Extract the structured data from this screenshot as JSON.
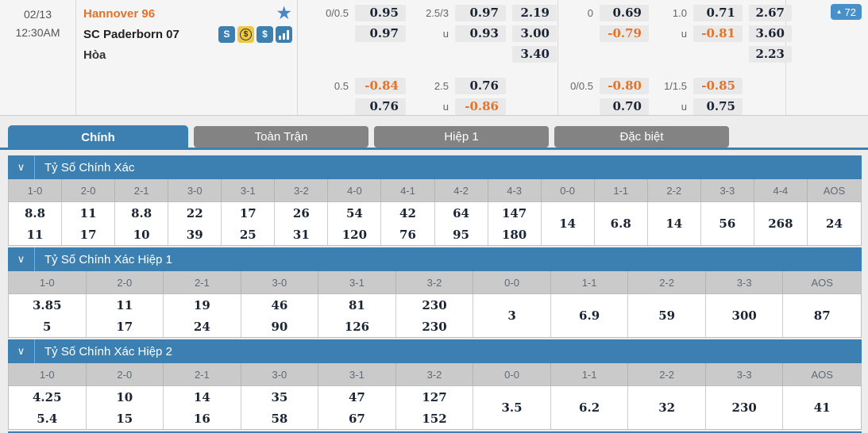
{
  "colors": {
    "accent_blue": "#3c7fb1",
    "button_blue": "#4a90c8",
    "tab_gray": "#838383",
    "odds_orange": "#e0742d",
    "odds_dark": "#1b2433",
    "chip_bg": "#e9e9e9"
  },
  "match": {
    "date": "02/13",
    "time": "12:30AM",
    "home_team": "Hannover 96",
    "away_team": "SC Paderborn 07",
    "draw_label": "Hòa",
    "favorite_icon": "star-icon",
    "team_icons": [
      "form-icon",
      "money-circle-icon",
      "dollar-icon",
      "bar-chart-icon"
    ],
    "more_arrow": "▲",
    "more_count": "72",
    "under_label": "u",
    "markets": {
      "ft": {
        "hdp_line": "0/0.5",
        "hdp_home": "0.95",
        "hdp_away": "0.97",
        "ou_line": "2.5/3",
        "ou_over": "0.97",
        "ou_under": "0.93",
        "x12_home": "2.19",
        "x12_draw": "3.00",
        "x12_away": "3.40",
        "hdp2_line": "0.5",
        "hdp2_home": "-0.84",
        "hdp2_away": "0.76",
        "ou2_line": "2.5",
        "ou2_over": "0.76",
        "ou2_under": "-0.86"
      },
      "fh": {
        "hdp_line": "0",
        "hdp_home": "0.69",
        "hdp_away": "-0.79",
        "ou_line": "1.0",
        "ou_over": "0.71",
        "ou_under": "-0.81",
        "x12_home": "2.67",
        "x12_draw": "3.60",
        "x12_away": "2.23",
        "hdp2_line": "0/0.5",
        "hdp2_home": "-0.80",
        "hdp2_away": "0.70",
        "ou2_line": "1/1.5",
        "ou2_over": "-0.85",
        "ou2_under": "0.75"
      }
    }
  },
  "tabs": [
    {
      "label": "Chính",
      "active": true
    },
    {
      "label": "Toàn Trận",
      "active": false
    },
    {
      "label": "Hiệp 1",
      "active": false
    },
    {
      "label": "Đặc biệt",
      "active": false
    }
  ],
  "sections": [
    {
      "title": "Tỷ Số Chính Xác",
      "columns": [
        {
          "label": "1-0",
          "values": [
            "8.8",
            "11"
          ]
        },
        {
          "label": "2-0",
          "values": [
            "11",
            "17"
          ]
        },
        {
          "label": "2-1",
          "values": [
            "8.8",
            "10"
          ]
        },
        {
          "label": "3-0",
          "values": [
            "22",
            "39"
          ]
        },
        {
          "label": "3-1",
          "values": [
            "17",
            "25"
          ]
        },
        {
          "label": "3-2",
          "values": [
            "26",
            "31"
          ]
        },
        {
          "label": "4-0",
          "values": [
            "54",
            "120"
          ]
        },
        {
          "label": "4-1",
          "values": [
            "42",
            "76"
          ]
        },
        {
          "label": "4-2",
          "values": [
            "64",
            "95"
          ]
        },
        {
          "label": "4-3",
          "values": [
            "147",
            "180"
          ]
        },
        {
          "label": "0-0",
          "values": [
            "14"
          ]
        },
        {
          "label": "1-1",
          "values": [
            "6.8"
          ]
        },
        {
          "label": "2-2",
          "values": [
            "14"
          ]
        },
        {
          "label": "3-3",
          "values": [
            "56"
          ]
        },
        {
          "label": "4-4",
          "values": [
            "268"
          ]
        },
        {
          "label": "AOS",
          "values": [
            "24"
          ]
        }
      ]
    },
    {
      "title": "Tỷ Số Chính Xác Hiệp 1",
      "columns": [
        {
          "label": "1-0",
          "values": [
            "3.85",
            "5"
          ]
        },
        {
          "label": "2-0",
          "values": [
            "11",
            "17"
          ]
        },
        {
          "label": "2-1",
          "values": [
            "19",
            "24"
          ]
        },
        {
          "label": "3-0",
          "values": [
            "46",
            "90"
          ]
        },
        {
          "label": "3-1",
          "values": [
            "81",
            "126"
          ]
        },
        {
          "label": "3-2",
          "values": [
            "230",
            "230"
          ]
        },
        {
          "label": "0-0",
          "values": [
            "3"
          ]
        },
        {
          "label": "1-1",
          "values": [
            "6.9"
          ]
        },
        {
          "label": "2-2",
          "values": [
            "59"
          ]
        },
        {
          "label": "3-3",
          "values": [
            "300"
          ]
        },
        {
          "label": "AOS",
          "values": [
            "87"
          ]
        }
      ]
    },
    {
      "title": "Tỷ Số Chính Xác Hiệp 2",
      "columns": [
        {
          "label": "1-0",
          "values": [
            "4.25",
            "5.4"
          ]
        },
        {
          "label": "2-0",
          "values": [
            "10",
            "15"
          ]
        },
        {
          "label": "2-1",
          "values": [
            "14",
            "16"
          ]
        },
        {
          "label": "3-0",
          "values": [
            "35",
            "58"
          ]
        },
        {
          "label": "3-1",
          "values": [
            "47",
            "67"
          ]
        },
        {
          "label": "3-2",
          "values": [
            "127",
            "152"
          ]
        },
        {
          "label": "0-0",
          "values": [
            "3.5"
          ]
        },
        {
          "label": "1-1",
          "values": [
            "6.2"
          ]
        },
        {
          "label": "2-2",
          "values": [
            "32"
          ]
        },
        {
          "label": "3-3",
          "values": [
            "230"
          ]
        },
        {
          "label": "AOS",
          "values": [
            "41"
          ]
        }
      ]
    }
  ]
}
